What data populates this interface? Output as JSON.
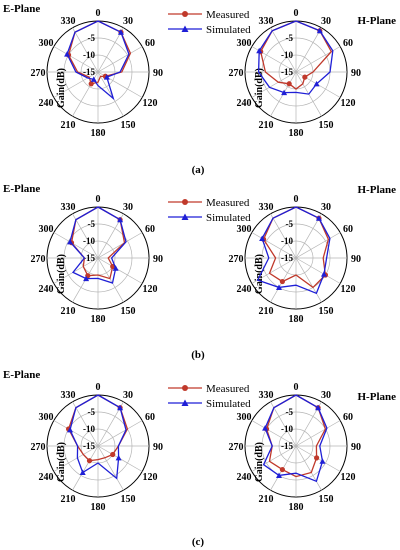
{
  "legend": {
    "measured": "Measured",
    "simulated": "Simulated",
    "measured_color": "#c0392b",
    "simulated_color": "#1f1fd6"
  },
  "chart_data": [
    {
      "type": "polar-line",
      "panel": "(a)",
      "title": "E-Plane",
      "ylabel": "Gain(dB)",
      "rlim": [
        -15,
        0
      ],
      "rticks": [
        0,
        -5,
        -10,
        -15
      ],
      "angle_ticks": [
        0,
        30,
        60,
        90,
        120,
        150,
        180,
        210,
        240,
        270,
        300,
        330
      ],
      "series": [
        {
          "name": "Measured",
          "angles": [
            0,
            30,
            60,
            90,
            120,
            150,
            180,
            210,
            240,
            270,
            300,
            330
          ],
          "values": [
            0,
            -1.5,
            -4,
            -8,
            -12.5,
            -13.5,
            -12,
            -11,
            -12,
            -9,
            -5,
            -1.5
          ]
        },
        {
          "name": "Simulated",
          "angles": [
            0,
            30,
            60,
            90,
            120,
            150,
            180,
            210,
            240,
            270,
            300,
            330
          ],
          "values": [
            0,
            -1.5,
            -4.5,
            -8.5,
            -12,
            -6,
            -11,
            -12.5,
            -11.5,
            -8.5,
            -4.5,
            -1.5
          ]
        }
      ]
    },
    {
      "type": "polar-line",
      "panel": "(a)",
      "title": "H-Plane",
      "ylabel": "Gain(dB)",
      "rlim": [
        -15,
        0
      ],
      "rticks": [
        0,
        -5,
        -10,
        -15
      ],
      "angle_ticks": [
        0,
        30,
        60,
        90,
        120,
        150,
        180,
        210,
        240,
        270,
        300,
        330
      ],
      "series": [
        {
          "name": "Measured",
          "angles": [
            0,
            30,
            60,
            90,
            120,
            150,
            180,
            210,
            240,
            270,
            300,
            330
          ],
          "values": [
            0,
            -1,
            -3,
            -10,
            -12,
            -11,
            -10,
            -11,
            -9,
            -6,
            -3,
            -1
          ]
        },
        {
          "name": "Simulated",
          "angles": [
            0,
            30,
            60,
            90,
            120,
            150,
            180,
            210,
            240,
            270,
            300,
            330
          ],
          "values": [
            0,
            -1,
            -2.5,
            -5,
            -8,
            -7.5,
            -9,
            -8,
            -6,
            -4,
            -2.5,
            -1
          ]
        }
      ]
    },
    {
      "type": "polar-line",
      "panel": "(b)",
      "title": "E-Plane",
      "ylabel": "Gain(dB)",
      "rlim": [
        -15,
        0
      ],
      "rticks": [
        0,
        -5,
        -10,
        -15
      ],
      "angle_ticks": [
        0,
        30,
        60,
        90,
        120,
        150,
        180,
        210,
        240,
        270,
        300,
        330
      ],
      "series": [
        {
          "name": "Measured",
          "angles": [
            0,
            30,
            60,
            90,
            120,
            150,
            180,
            210,
            240,
            270,
            300,
            330
          ],
          "values": [
            0,
            -2,
            -6,
            -12,
            -10,
            -8,
            -10,
            -9,
            -10,
            -11,
            -6,
            -2
          ]
        },
        {
          "name": "Simulated",
          "angles": [
            0,
            30,
            60,
            90,
            120,
            150,
            180,
            210,
            240,
            270,
            300,
            330
          ],
          "values": [
            0,
            -2,
            -5.5,
            -11,
            -9,
            -6.5,
            -9,
            -8,
            -6.5,
            -11,
            -5.5,
            -2
          ]
        }
      ]
    },
    {
      "type": "polar-line",
      "panel": "(b)",
      "title": "H-Plane",
      "ylabel": "Gain(dB)",
      "rlim": [
        -15,
        0
      ],
      "rticks": [
        0,
        -5,
        -10,
        -15
      ],
      "angle_ticks": [
        0,
        30,
        60,
        90,
        120,
        150,
        180,
        210,
        240,
        270,
        300,
        330
      ],
      "series": [
        {
          "name": "Measured",
          "angles": [
            0,
            30,
            60,
            90,
            120,
            150,
            180,
            210,
            240,
            270,
            300,
            330
          ],
          "values": [
            0,
            -1.5,
            -4,
            -7,
            -5,
            -5,
            -10,
            -7,
            -6,
            -9,
            -4,
            -1.5
          ]
        },
        {
          "name": "Simulated",
          "angles": [
            0,
            30,
            60,
            90,
            120,
            150,
            180,
            210,
            240,
            270,
            300,
            330
          ],
          "values": [
            0,
            -1.5,
            -3.5,
            -6,
            -5.5,
            -3,
            -7,
            -5,
            -2,
            -7,
            -3.5,
            -1.5
          ]
        }
      ]
    },
    {
      "type": "polar-line",
      "panel": "(c)",
      "title": "E-Plane",
      "ylabel": "Gain(dB)",
      "rlim": [
        -15,
        0
      ],
      "rticks": [
        0,
        -5,
        -10,
        -15
      ],
      "angle_ticks": [
        0,
        30,
        60,
        90,
        120,
        150,
        180,
        210,
        240,
        270,
        300,
        330
      ],
      "series": [
        {
          "name": "Measured",
          "angles": [
            0,
            30,
            60,
            90,
            120,
            150,
            180,
            210,
            240,
            270,
            300,
            330
          ],
          "values": [
            0,
            -2,
            -5,
            -9,
            -10,
            -11,
            -11,
            -10,
            -10,
            -9,
            -5,
            -2
          ]
        },
        {
          "name": "Simulated",
          "angles": [
            0,
            30,
            60,
            90,
            120,
            150,
            180,
            210,
            240,
            270,
            300,
            330
          ],
          "values": [
            0,
            -2,
            -5.5,
            -9,
            -8,
            -4,
            -10,
            -6,
            -8,
            -9,
            -5.5,
            -2
          ]
        }
      ]
    },
    {
      "type": "polar-line",
      "panel": "(c)",
      "title": "H-Plane",
      "ylabel": "Gain(dB)",
      "rlim": [
        -15,
        0
      ],
      "rticks": [
        0,
        -5,
        -10,
        -15
      ],
      "angle_ticks": [
        0,
        30,
        60,
        90,
        120,
        150,
        180,
        210,
        240,
        270,
        300,
        330
      ],
      "series": [
        {
          "name": "Measured",
          "angles": [
            0,
            30,
            60,
            90,
            120,
            150,
            180,
            210,
            240,
            270,
            300,
            330
          ],
          "values": [
            0,
            -2,
            -5,
            -9,
            -8,
            -6,
            -6,
            -7,
            -6,
            -8,
            -5,
            -2
          ]
        },
        {
          "name": "Simulated",
          "angles": [
            0,
            30,
            60,
            90,
            120,
            150,
            180,
            210,
            240,
            270,
            300,
            330
          ],
          "values": [
            0,
            -2,
            -4.5,
            -8,
            -6,
            -3,
            -7,
            -5,
            -4,
            -8,
            -4.5,
            -2
          ]
        }
      ]
    }
  ]
}
